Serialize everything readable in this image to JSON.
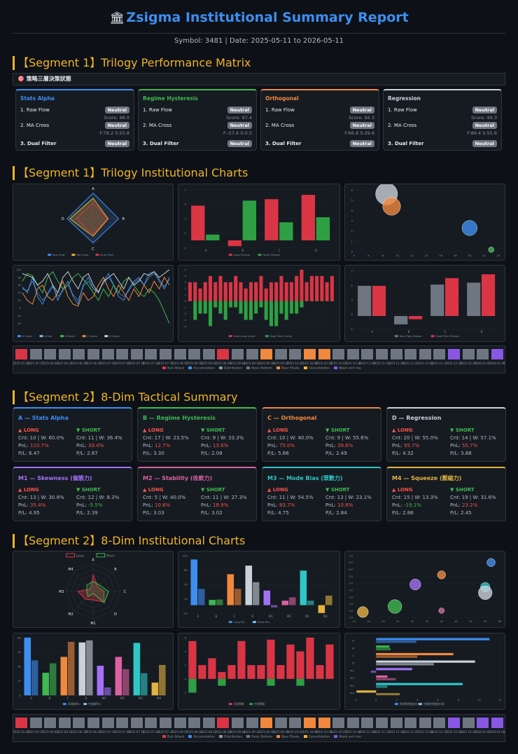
{
  "header": {
    "icon": "bank-icon",
    "title": "Zsigma Institutional Summary Report",
    "subtitle": "Symbol: 3481 | Date: 2025-05-11 to 2026-05-11"
  },
  "sections": {
    "s1": "【Segment 1】Trilogy Performance Matrix",
    "s2": "【Segment 1】Trilogy Institutional Charts",
    "s3": "【Segment 2】8-Dim Tactical Summary",
    "s4": "【Segment 2】8-Dim Institutional Charts"
  },
  "strip_label": "🎯 策略三層決策狀態",
  "trilogy": [
    {
      "name": "Stats Alpha",
      "color": "#3d8ef0",
      "r1": "1. Raw Flow",
      "b1": "Neutral",
      "score": "Score: 98.0",
      "r2": "2. MA Cross",
      "b2": "Neutral",
      "f": "F:78.2 S:55.8",
      "r3": "3. Dual Filter",
      "b3": "Neutral"
    },
    {
      "name": "Regime Hysteresis",
      "color": "#3fb950",
      "r1": "1. Raw Flow",
      "b1": "Neutral",
      "score": "Score: 97.4",
      "r2": "2. MA Cross",
      "b2": "Neutral",
      "f": "F:-57.6 S:0.5",
      "r3": "3. Dual Filter",
      "b3": "Neutral"
    },
    {
      "name": "Orthogonal",
      "color": "#f0883e",
      "r1": "1. Raw Flow",
      "b1": "Neutral",
      "score": "Score: 92.3",
      "r2": "2. MA Cross",
      "b2": "Neutral",
      "f": "F:66.8 S:29.6",
      "r3": "3. Dual Filter",
      "b3": "Neutral"
    },
    {
      "name": "Regression",
      "color": "#c9d1d9",
      "r1": "1. Raw Flow",
      "b1": "Neutral",
      "score": "Score: 99.3",
      "r2": "2. MA Cross",
      "b2": "Neutral",
      "f": "F:89.4 S:55.6",
      "r3": "3. Dual Filter",
      "b3": "Neutral"
    }
  ],
  "dims": [
    {
      "name": "A — Stats Alpha",
      "color": "#3d8ef0",
      "lc": "Cnt: 10 | W: 60.0%",
      "lp": "110.7%",
      "lpc": "red",
      "lf": "P/L: 6.47",
      "sc": "Cnt: 11 | W: 36.4%",
      "sp": "39.4%",
      "spc": "red",
      "sf": "P/L: 2.87"
    },
    {
      "name": "B — Regime Hysteresis",
      "color": "#3fb950",
      "lc": "Cnt: 17 | W: 23.5%",
      "lp": "12.7%",
      "lpc": "red",
      "lf": "P/L: 3.30",
      "sc": "Cnt: 9 | W: 33.3%",
      "sp": "13.6%",
      "spc": "red",
      "sf": "P/L: 2.08"
    },
    {
      "name": "C — Orthogonal",
      "color": "#f0883e",
      "lc": "Cnt: 10 | W: 40.0%",
      "lp": "75.0%",
      "lpc": "red",
      "lf": "P/L: 5.66",
      "sc": "Cnt: 9 | W: 55.6%",
      "sp": "39.6%",
      "spc": "red",
      "sf": "P/L: 2.49"
    },
    {
      "name": "D — Regression",
      "color": "#c9d1d9",
      "lc": "Cnt: 20 | W: 55.0%",
      "lp": "95.7%",
      "lpc": "red",
      "lf": "P/L: 4.32",
      "sc": "Cnt: 14 | W: 57.1%",
      "sp": "55.7%",
      "spc": "red",
      "sf": "P/L: 3.88"
    },
    {
      "name": "M1 — Skewness (偏態力)",
      "color": "#a371f7",
      "lc": "Cnt: 13 | W: 30.8%",
      "lp": "35.4%",
      "lpc": "red",
      "lf": "P/L: 4.95",
      "sc": "Cnt: 12 | W: 8.3%",
      "sp": "-5.5%",
      "spc": "grn",
      "sf": "P/L: 2.39"
    },
    {
      "name": "M2 — Stability (收斂力)",
      "color": "#db61a2",
      "lc": "Cnt: 5 | W: 40.0%",
      "lp": "10.8%",
      "lpc": "red",
      "lf": "P/L: 3.03",
      "sc": "Cnt: 11 | W: 27.3%",
      "sp": "18.9%",
      "spc": "red",
      "sf": "P/L: 3.02"
    },
    {
      "name": "M3 — Mode Bias (眾數力)",
      "color": "#2fc6c6",
      "lc": "Cnt: 11 | W: 54.5%",
      "lp": "83.7%",
      "lpc": "red",
      "lf": "P/L: 4.75",
      "sc": "Cnt: 13 | W: 23.1%",
      "sp": "10.8%",
      "spc": "red",
      "sf": "P/L: 2.84"
    },
    {
      "name": "M4 — Squeeze (壓縮力)",
      "color": "#e3b341",
      "lc": "Cnt: 15 | W: 13.3%",
      "lp": "-19.1%",
      "lpc": "grn",
      "lf": "P/L: 2.86",
      "sc": "Cnt: 19 | W: 31.6%",
      "sp": "23.2%",
      "spc": "red",
      "sf": "P/L: 2.45"
    }
  ],
  "labels": {
    "long": "▲ LONG",
    "short": "▼ SHORT",
    "pnl": "PnL: "
  },
  "timeline": {
    "colors": {
      "bull": "#da3545",
      "accum": "#3d8ef0",
      "distr": "#8b949e",
      "panic": "#6e7681",
      "bear": "#f0883e",
      "consol": "#f0b429",
      "wash": "#8957e5"
    },
    "row1": [
      "bull",
      "panic",
      "panic",
      "panic",
      "panic",
      "panic",
      "panic",
      "panic",
      "panic",
      "panic",
      "panic",
      "panic",
      "panic",
      "panic",
      "bull",
      "panic",
      "panic",
      "bear",
      "panic",
      "panic",
      "bear",
      "bear",
      "panic",
      "panic",
      "panic",
      "panic",
      "panic",
      "panic",
      "panic",
      "panic",
      "wash",
      "panic",
      "panic",
      "wash"
    ],
    "row2": [
      "bull",
      "panic",
      "panic",
      "panic",
      "panic",
      "panic",
      "panic",
      "panic",
      "panic",
      "panic",
      "panic",
      "panic",
      "panic",
      "panic",
      "bull",
      "panic",
      "panic",
      "bear",
      "panic",
      "panic",
      "bear",
      "bear",
      "panic",
      "panic",
      "panic",
      "panic",
      "panic",
      "panic",
      "panic",
      "panic",
      "wash",
      "panic",
      "wash",
      "wash"
    ],
    "dates": [
      "2025-05-20",
      "2025-05-27",
      "2025-06-03",
      "2025-06-11",
      "2025-06-18",
      "2025-06-25",
      "2025-07-02",
      "2025-07-09",
      "2025-07-16",
      "2025-07-24",
      "2025-07-31",
      "2025-08-07",
      "2025-08-14",
      "2025-08-21",
      "2025-08-28",
      "2025-09-04",
      "2025-09-11",
      "2025-09-18",
      "2025-09-25",
      "2025-10-02",
      "2025-10-09",
      "2025-10-16",
      "2025-10-23",
      "2025-10-30",
      "2025-11-06",
      "2025-11-13",
      "2025-11-20",
      "2025-11-27",
      "2025-12-04",
      "2025-12-11",
      "2025-12-18",
      "2025-12-25",
      "2026-01-01",
      "2026-01-08"
    ],
    "legend": [
      "Bull Attack",
      "Accumulation",
      "Distribution",
      "Panic Bottom",
      "Bear Shake",
      "Consolidation",
      "Wash and rise"
    ]
  },
  "chart_data": [
    {
      "type": "radar",
      "axes": [
        "A",
        "B",
        "C",
        "D"
      ],
      "series": [
        {
          "name": "Raw Flow",
          "values": [
            98,
            97.4,
            92.3,
            99.3
          ]
        },
        {
          "name": "MA Cross",
          "values": [
            78,
            58,
            67,
            89
          ]
        },
        {
          "name": "Dual Filter",
          "values": [
            60,
            55,
            60,
            65
          ]
        }
      ],
      "range": [
        0,
        100
      ]
    },
    {
      "type": "bar",
      "categories": [
        "A",
        "B",
        "C",
        "D"
      ],
      "series": [
        {
          "name": "Long Sharpe",
          "values": [
            4.8,
            -0.8,
            5.7,
            6.3
          ]
        },
        {
          "name": "Short Sharpe",
          "values": [
            0.8,
            5.5,
            2.5,
            3.2
          ]
        }
      ],
      "ylim": [
        -1,
        7
      ]
    },
    {
      "type": "scatter",
      "points": [
        {
          "x": 8.5,
          "y": 5.6,
          "r": 16,
          "c": "#c9d1d9"
        },
        {
          "x": 9.2,
          "y": 4.4,
          "r": 13,
          "c": "#f0883e"
        },
        {
          "x": 20,
          "y": 2.3,
          "r": 11,
          "c": "#3d8ef0"
        },
        {
          "x": 23,
          "y": 0.2,
          "r": 4,
          "c": "#3fb950"
        }
      ],
      "xlim": [
        4,
        24
      ],
      "ylim": [
        0,
        6
      ]
    },
    {
      "type": "line",
      "series": [
        {
          "name": "A Score",
          "values": [
            55,
            40,
            80,
            30,
            10,
            40,
            60,
            20,
            50,
            70,
            30,
            10,
            60,
            80,
            50,
            40,
            70,
            90,
            60,
            30,
            20,
            50,
            70,
            80,
            60,
            90,
            95,
            70,
            50,
            80
          ]
        },
        {
          "name": "A Fast",
          "values": [
            50,
            45,
            70,
            40,
            20,
            35,
            55,
            30,
            45,
            60,
            35,
            20,
            55,
            70,
            50,
            45,
            65,
            80,
            60,
            40,
            30,
            45,
            65,
            75,
            60,
            80,
            90,
            75,
            55,
            75
          ]
        },
        {
          "name": "B Score",
          "values": [
            70,
            90,
            85,
            60,
            40,
            80,
            95,
            70,
            50,
            60,
            80,
            90,
            75,
            60,
            40,
            20,
            50,
            30,
            60,
            40,
            70,
            80,
            60,
            40,
            30,
            50,
            40,
            20,
            -10,
            -40
          ]
        },
        {
          "name": "C Score",
          "values": [
            40,
            20,
            10,
            50,
            60,
            30,
            20,
            40,
            70,
            30,
            10,
            5,
            40,
            20,
            30,
            60,
            80,
            50,
            30,
            60,
            40,
            20,
            50,
            30,
            60,
            40,
            70,
            50,
            80,
            60
          ]
        },
        {
          "name": "D Score",
          "values": [
            90,
            85,
            80,
            60,
            70,
            90,
            60,
            40,
            80,
            95,
            70,
            50,
            80,
            90,
            60,
            40,
            70,
            80,
            90,
            70,
            50,
            80,
            60,
            70,
            90,
            85,
            95,
            80,
            90,
            100
          ]
        }
      ],
      "ylim": [
        -40,
        100
      ]
    },
    {
      "type": "bar",
      "series": [
        {
          "name": "Dual Long Count",
          "values": [
            3,
            3,
            2,
            3,
            4,
            3,
            4,
            3,
            3,
            4,
            3,
            2,
            3,
            3,
            4,
            2,
            3,
            3,
            4,
            3,
            3,
            4,
            5,
            3,
            4,
            4,
            4,
            3,
            4
          ]
        },
        {
          "name": "Dual Short Count",
          "values": [
            0,
            -3,
            -2,
            -2,
            -4,
            -1,
            -2,
            -3,
            -1,
            -1,
            -2,
            -3,
            -3,
            -2,
            -1,
            -3,
            -4,
            -4,
            -2,
            -3,
            -2,
            -2,
            -1,
            0,
            0,
            0,
            0,
            0,
            0
          ]
        }
      ],
      "ylim": [
        -4,
        5
      ]
    },
    {
      "type": "bar",
      "categories": [
        "A",
        "B",
        "C",
        "D"
      ],
      "series": [
        {
          "name": "Raw Flow Sharpe",
          "values": [
            4.7,
            -1.3,
            4.9,
            5.2
          ]
        },
        {
          "name": "Dual Filter Sharpe",
          "values": [
            4.7,
            -0.5,
            5.9,
            6.5
          ]
        }
      ],
      "ylim": [
        -2,
        7
      ]
    },
    {
      "type": "radar",
      "axes": [
        "A",
        "B",
        "C",
        "D",
        "M1",
        "M2",
        "M3",
        "M4"
      ],
      "series": [
        {
          "name": "Long",
          "values": [
            60,
            24,
            40,
            55,
            31,
            40,
            55,
            13
          ]
        },
        {
          "name": "Short",
          "values": [
            36,
            33,
            56,
            57,
            8,
            27,
            23,
            32
          ]
        }
      ],
      "range": [
        0,
        100
      ]
    },
    {
      "type": "bar",
      "categories": [
        "A",
        "B",
        "C",
        "D",
        "M1",
        "M2",
        "M3",
        "M4"
      ],
      "series": [
        {
          "name": "Long PnL",
          "values": [
            110.7,
            12.7,
            75,
            95.7,
            35.4,
            10.8,
            83.7,
            -19.1
          ]
        },
        {
          "name": "Short PnL",
          "values": [
            39.4,
            13.6,
            39.6,
            55.7,
            -5.5,
            18.9,
            10.8,
            23.2
          ]
        }
      ],
      "ylim": [
        -20,
        120
      ]
    },
    {
      "type": "scatter",
      "points": [
        {
          "x": 57,
          "y": 6.5,
          "r": 6,
          "c": "#3d8ef0"
        },
        {
          "x": 40,
          "y": 5.6,
          "r": 6,
          "c": "#f0883e"
        },
        {
          "x": 31,
          "y": 4.9,
          "r": 8,
          "c": "#a371f7"
        },
        {
          "x": 55,
          "y": 4.7,
          "r": 7,
          "c": "#2fc6c6"
        },
        {
          "x": 55,
          "y": 4.3,
          "r": 10,
          "c": "#c9d1d9"
        },
        {
          "x": 24,
          "y": 3.3,
          "r": 10,
          "c": "#3fb950"
        },
        {
          "x": 40,
          "y": 3.0,
          "r": 4,
          "c": "#db61a2"
        },
        {
          "x": 13,
          "y": 2.9,
          "r": 8,
          "c": "#e3b341"
        }
      ],
      "xlim": [
        10,
        60
      ],
      "ylim": [
        2.5,
        7
      ]
    },
    {
      "type": "bar",
      "categories": [
        "A",
        "B",
        "C",
        "D",
        "M1",
        "M2",
        "M3",
        "M4"
      ],
      "series": [
        {
          "name": "多頭勝率%",
          "values": [
            60,
            23.5,
            40,
            55,
            30.8,
            40,
            54.5,
            13.3
          ]
        },
        {
          "name": "空頭勝率%",
          "values": [
            36.4,
            33.3,
            55.6,
            57.1,
            8.3,
            27.3,
            23.1,
            31.6
          ]
        }
      ],
      "ylim": [
        0,
        60
      ]
    },
    {
      "type": "bar",
      "series": [
        {
          "name": "多頭策略",
          "values": [
            5.5,
            2,
            3,
            1,
            2,
            5.5,
            2,
            2,
            5.7,
            2,
            5,
            4,
            6,
            2,
            5
          ]
        },
        {
          "name": "空頭策略",
          "values": [
            2,
            0,
            0,
            -1,
            0,
            0,
            0,
            0,
            -1,
            0,
            0,
            -1,
            0,
            0,
            0
          ]
        }
      ],
      "ylim": [
        -2,
        6
      ]
    },
    {
      "type": "hbar",
      "categories": [
        "A",
        "B",
        "C",
        "D",
        "M1",
        "M2",
        "M3",
        "M4"
      ],
      "series": [
        {
          "name": "多頭期望值統計值",
          "values": [
            11,
            1.3,
            7.5,
            9.6,
            3.5,
            1.1,
            8.4,
            -1.9
          ]
        },
        {
          "name": "空頭期望值統計值",
          "values": [
            3.9,
            1.4,
            4,
            5.6,
            -0.5,
            1.9,
            1.1,
            2.3
          ]
        }
      ],
      "xlim": [
        -2,
        12
      ]
    }
  ]
}
